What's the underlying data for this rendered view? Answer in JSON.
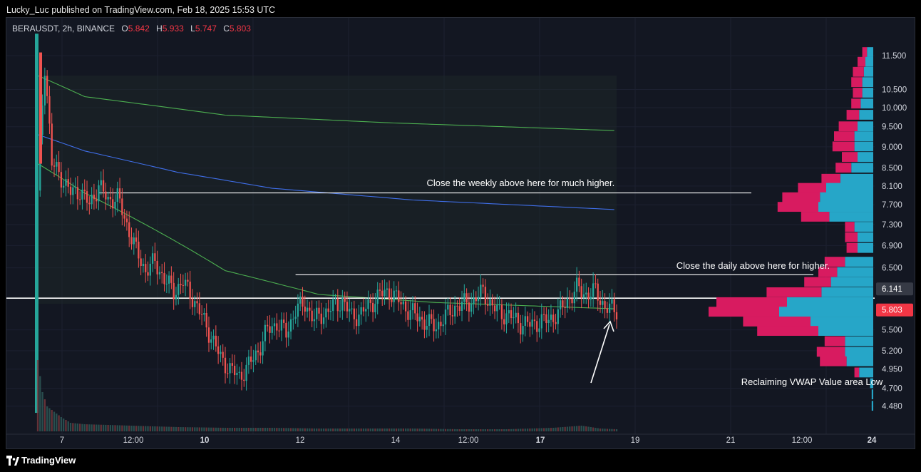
{
  "header": {
    "published_by": "Lucky_Luc published on TradingView.com, Feb 18, 2025 15:53 UTC"
  },
  "legend": {
    "symbol": "BERAUSDT, 2h, BINANCE",
    "o_label": "O",
    "o_value": "5.842",
    "h_label": "H",
    "h_value": "5.933",
    "l_label": "L",
    "l_value": "5.747",
    "c_label": "C",
    "c_value": "5.803"
  },
  "footer": {
    "brand": "TradingView"
  },
  "colors": {
    "up": "#26a69a",
    "down": "#ef5350",
    "vwap_upper": "#4caf50",
    "vwap_mid": "#3f6ee8",
    "vwap_lower": "#4caf50",
    "vp_sell": "#d81b60",
    "vp_buy": "#26a6c8"
  },
  "chart_data": {
    "type": "candlestick",
    "symbol": "BERAUSDT",
    "timeframe": "2h",
    "exchange": "BINANCE",
    "scale": "log",
    "ylim": [
      4.35,
      12.3
    ],
    "y_ticks": [
      "11.500",
      "10.500",
      "10.000",
      "9.500",
      "9.000",
      "8.500",
      "8.100",
      "7.700",
      "7.300",
      "6.900",
      "6.500",
      "5.500",
      "5.200",
      "4.950",
      "4.700",
      "4.480"
    ],
    "x_ticks": [
      "7",
      "12:00",
      "10",
      "12",
      "14",
      "12:00",
      "17",
      "19",
      "21",
      "12:00",
      "24"
    ],
    "price_labels": [
      {
        "text": "6.141",
        "value": 6.141,
        "bg": "#363a45"
      },
      {
        "text": "5.803",
        "value": 5.803,
        "bg": "#f23645"
      }
    ],
    "price_path": [
      [
        0,
        8.0
      ],
      [
        3,
        11.2
      ],
      [
        6,
        8.6
      ],
      [
        10,
        8.3
      ],
      [
        14,
        7.95
      ],
      [
        18,
        8.0
      ],
      [
        22,
        7.7
      ],
      [
        26,
        8.1
      ],
      [
        30,
        7.8
      ],
      [
        34,
        7.85
      ],
      [
        38,
        7.3
      ],
      [
        42,
        6.8
      ],
      [
        46,
        6.45
      ],
      [
        50,
        6.6
      ],
      [
        54,
        6.3
      ],
      [
        58,
        6.1
      ],
      [
        62,
        6.25
      ],
      [
        66,
        6.0
      ],
      [
        70,
        5.7
      ],
      [
        74,
        5.4
      ],
      [
        78,
        5.1
      ],
      [
        82,
        4.95
      ],
      [
        86,
        4.85
      ],
      [
        90,
        5.0
      ],
      [
        94,
        5.2
      ],
      [
        98,
        5.5
      ],
      [
        102,
        5.6
      ],
      [
        106,
        5.45
      ],
      [
        110,
        5.8
      ],
      [
        114,
        5.9
      ],
      [
        118,
        5.65
      ],
      [
        122,
        5.75
      ],
      [
        126,
        5.85
      ],
      [
        130,
        5.95
      ],
      [
        134,
        5.7
      ],
      [
        138,
        5.75
      ],
      [
        142,
        5.9
      ],
      [
        146,
        6.05
      ],
      [
        150,
        6.1
      ],
      [
        154,
        5.95
      ],
      [
        158,
        5.8
      ],
      [
        162,
        5.7
      ],
      [
        166,
        5.6
      ],
      [
        170,
        5.55
      ],
      [
        174,
        5.7
      ],
      [
        178,
        5.85
      ],
      [
        182,
        5.9
      ],
      [
        186,
        5.95
      ],
      [
        190,
        6.1
      ],
      [
        194,
        5.85
      ],
      [
        198,
        5.75
      ],
      [
        202,
        5.7
      ],
      [
        206,
        5.6
      ],
      [
        210,
        5.58
      ],
      [
        214,
        5.62
      ],
      [
        218,
        5.65
      ],
      [
        222,
        5.75
      ],
      [
        226,
        5.95
      ],
      [
        230,
        6.15
      ],
      [
        234,
        6.05
      ],
      [
        238,
        6.1
      ],
      [
        242,
        5.85
      ],
      [
        246,
        5.8
      ]
    ],
    "vwap_bands": {
      "upper": [
        [
          0,
          10.9
        ],
        [
          20,
          10.3
        ],
        [
          80,
          9.8
        ],
        [
          150,
          9.6
        ],
        [
          247,
          9.4
        ]
      ],
      "middle": [
        [
          0,
          9.3
        ],
        [
          20,
          8.9
        ],
        [
          60,
          8.4
        ],
        [
          100,
          8.05
        ],
        [
          160,
          7.8
        ],
        [
          247,
          7.6
        ]
      ],
      "lower": [
        [
          0,
          8.6
        ],
        [
          20,
          7.95
        ],
        [
          50,
          7.2
        ],
        [
          80,
          6.45
        ],
        [
          120,
          6.05
        ],
        [
          170,
          5.92
        ],
        [
          247,
          5.82
        ]
      ]
    },
    "horizontal_lines": [
      {
        "value": 7.95,
        "from": 26,
        "to": "right"
      },
      {
        "value": 6.38,
        "from": 110,
        "to": "right"
      },
      {
        "value": 5.99,
        "from": "left",
        "to": "right"
      }
    ],
    "annotations": [
      {
        "text": "Close the weekly above here for much higher.",
        "value": 8.1,
        "x": 130
      },
      {
        "text": "Close the daily above here for higher.",
        "value": 6.48,
        "x": 158
      },
      {
        "text": "Reclaiming VWAP Value area Low",
        "value": 4.78,
        "x": 160
      }
    ],
    "volume_profile": {
      "rows": [
        [
          11.6,
          0.03,
          0.04
        ],
        [
          11.3,
          0.05,
          0.05
        ],
        [
          11.0,
          0.07,
          0.06
        ],
        [
          10.7,
          0.07,
          0.07
        ],
        [
          10.4,
          0.06,
          0.07
        ],
        [
          10.1,
          0.06,
          0.08
        ],
        [
          9.8,
          0.08,
          0.09
        ],
        [
          9.5,
          0.12,
          0.1
        ],
        [
          9.25,
          0.13,
          0.12
        ],
        [
          9.0,
          0.14,
          0.12
        ],
        [
          8.75,
          0.1,
          0.1
        ],
        [
          8.5,
          0.1,
          0.14
        ],
        [
          8.25,
          0.12,
          0.21
        ],
        [
          8.05,
          0.18,
          0.3
        ],
        [
          7.85,
          0.24,
          0.34
        ],
        [
          7.65,
          0.26,
          0.35
        ],
        [
          7.45,
          0.18,
          0.28
        ],
        [
          7.25,
          0.06,
          0.12
        ],
        [
          7.05,
          0.08,
          0.1
        ],
        [
          6.85,
          0.07,
          0.1
        ],
        [
          6.6,
          0.13,
          0.18
        ],
        [
          6.42,
          0.12,
          0.23
        ],
        [
          6.25,
          0.17,
          0.27
        ],
        [
          6.08,
          0.35,
          0.33
        ],
        [
          5.92,
          0.45,
          0.55
        ],
        [
          5.77,
          0.45,
          0.6
        ],
        [
          5.62,
          0.43,
          0.4
        ],
        [
          5.48,
          0.39,
          0.35
        ],
        [
          5.33,
          0.13,
          0.18
        ],
        [
          5.18,
          0.18,
          0.18
        ],
        [
          5.05,
          0.17,
          0.17
        ],
        [
          4.9,
          0.03,
          0.09
        ],
        [
          4.76,
          0.0,
          0.02
        ],
        [
          4.62,
          0.0,
          0.01
        ],
        [
          4.48,
          0.0,
          0.01
        ]
      ]
    },
    "volume": [
      [
        0,
        1.0
      ],
      [
        2,
        0.55
      ],
      [
        4,
        0.35
      ],
      [
        6,
        0.3
      ],
      [
        8,
        0.25
      ],
      [
        10,
        0.2
      ],
      [
        14,
        0.12
      ],
      [
        20,
        0.1
      ],
      [
        30,
        0.09
      ],
      [
        40,
        0.08
      ],
      [
        60,
        0.06
      ],
      [
        80,
        0.05
      ],
      [
        100,
        0.05
      ],
      [
        120,
        0.04
      ],
      [
        140,
        0.04
      ],
      [
        160,
        0.04
      ],
      [
        180,
        0.03
      ],
      [
        200,
        0.03
      ],
      [
        220,
        0.05
      ],
      [
        232,
        0.08
      ],
      [
        240,
        0.04
      ],
      [
        247,
        0.03
      ]
    ]
  }
}
